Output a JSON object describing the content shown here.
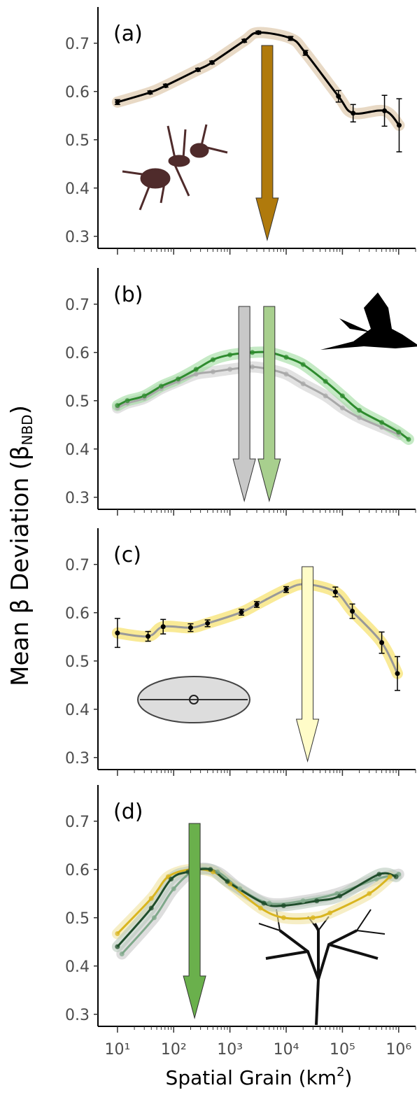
{
  "ylabel": {
    "text": "Mean β Deviation (β",
    "sub": "NBD",
    "end": ")"
  },
  "xlabel": {
    "text": "Spatial Grain (km",
    "sup": "2",
    "end": ")"
  },
  "chart_data": [
    {
      "type": "line",
      "panel_label": "(a)",
      "xscale": "log",
      "xlim": [
        4.5,
        2000000
      ],
      "ylim": [
        0.275,
        0.775
      ],
      "xticks": [
        10,
        100,
        1000,
        10000,
        100000,
        1000000
      ],
      "yticks": [
        0.3,
        0.4,
        0.5,
        0.6,
        0.7
      ],
      "series": [
        {
          "color": "#000000",
          "line_color": "#000000",
          "band_color": "#d9c09e",
          "x": [
            10,
            38,
            72,
            270,
            480,
            1800,
            3200,
            12000,
            22000,
            85000,
            155000,
            560000,
            1020000
          ],
          "values": [
            0.578,
            0.598,
            0.612,
            0.645,
            0.66,
            0.705,
            0.722,
            0.71,
            0.68,
            0.59,
            0.555,
            0.56,
            0.53
          ],
          "errors": [
            0.005,
            0.003,
            0.003,
            0.003,
            0.003,
            0.003,
            0.003,
            0.004,
            0.005,
            0.012,
            0.018,
            0.032,
            0.055
          ]
        }
      ],
      "arrows": [
        {
          "x": 4600,
          "color": "#b07a0c"
        }
      ]
    },
    {
      "type": "line",
      "panel_label": "(b)",
      "xscale": "log",
      "xlim": [
        4.5,
        2000000
      ],
      "ylim": [
        0.275,
        0.775
      ],
      "xticks": [
        10,
        100,
        1000,
        10000,
        100000,
        1000000
      ],
      "yticks": [
        0.3,
        0.4,
        0.5,
        0.6,
        0.7
      ],
      "series": [
        {
          "color": "#a9a9a9",
          "line_color": "#a9a9a9",
          "band_color": "#cfcfcf",
          "x": [
            10,
            15,
            30,
            60,
            120,
            250,
            500,
            1000,
            2500,
            5000,
            10000,
            20000,
            50000,
            100000,
            200000,
            500000,
            1000000
          ],
          "values": [
            0.485,
            0.495,
            0.505,
            0.525,
            0.54,
            0.555,
            0.56,
            0.565,
            0.57,
            0.565,
            0.555,
            0.535,
            0.51,
            0.485,
            0.465,
            0.445,
            0.43
          ]
        },
        {
          "color": "#2e8b2e",
          "line_color": "#2e8b2e",
          "band_color": "#9fdc9f",
          "x": [
            10,
            15,
            30,
            60,
            120,
            250,
            500,
            1000,
            2500,
            5000,
            10000,
            20000,
            50000,
            100000,
            200000,
            500000,
            1000000,
            1500000
          ],
          "values": [
            0.49,
            0.5,
            0.51,
            0.53,
            0.545,
            0.565,
            0.585,
            0.595,
            0.6,
            0.6,
            0.59,
            0.575,
            0.54,
            0.51,
            0.48,
            0.455,
            0.435,
            0.42
          ]
        }
      ],
      "arrows": [
        {
          "x": 1800,
          "color": "#c8c8c8"
        },
        {
          "x": 5000,
          "color": "#a8cf8e"
        }
      ]
    },
    {
      "type": "line",
      "panel_label": "(c)",
      "xscale": "log",
      "xlim": [
        4.5,
        2000000
      ],
      "ylim": [
        0.275,
        0.775
      ],
      "xticks": [
        10,
        100,
        1000,
        10000,
        100000,
        1000000
      ],
      "yticks": [
        0.3,
        0.4,
        0.5,
        0.6,
        0.7
      ],
      "series": [
        {
          "color": "#000000",
          "line_color": "#999999",
          "band_color": "#f5dc50",
          "x": [
            10,
            35,
            65,
            200,
            400,
            1600,
            3000,
            10000,
            22000,
            75000,
            150000,
            500000,
            950000
          ],
          "values": [
            0.558,
            0.551,
            0.571,
            0.569,
            0.578,
            0.601,
            0.617,
            0.648,
            0.659,
            0.643,
            0.603,
            0.538,
            0.474
          ],
          "errors": [
            0.03,
            0.01,
            0.015,
            0.008,
            0.007,
            0.006,
            0.006,
            0.006,
            0.006,
            0.01,
            0.015,
            0.022,
            0.035
          ]
        }
      ],
      "arrows": [
        {
          "x": 24000,
          "color": "#fffcc8"
        }
      ]
    },
    {
      "type": "line",
      "panel_label": "(d)",
      "xscale": "log",
      "xlim": [
        4.5,
        2000000
      ],
      "ylim": [
        0.275,
        0.775
      ],
      "xticks": [
        {
          "value": 10,
          "label": "10¹"
        },
        {
          "value": 100,
          "label": "10²"
        },
        {
          "value": 1000,
          "label": "10³"
        },
        {
          "value": 10000,
          "label": "10⁴"
        },
        {
          "value": 100000,
          "label": "10⁵"
        },
        {
          "value": 1000000,
          "label": "10⁶"
        }
      ],
      "yticks": [
        0.3,
        0.4,
        0.5,
        0.6,
        0.7
      ],
      "series": [
        {
          "color": "#7fa88a",
          "line_color": "#7fa88a",
          "band_color": "#c8c8c8",
          "x": [
            12,
            45,
            100,
            250,
            600,
            1500,
            5000,
            20000,
            80000,
            400000,
            1000000
          ],
          "values": [
            0.425,
            0.5,
            0.56,
            0.6,
            0.595,
            0.56,
            0.53,
            0.535,
            0.55,
            0.58,
            0.59
          ]
        },
        {
          "color": "#d9b520",
          "line_color": "#d9b520",
          "band_color": "#f0e2a0",
          "x": [
            10,
            40,
            80,
            200,
            500,
            1000,
            3500,
            9000,
            30000,
            60000,
            300000,
            700000
          ],
          "values": [
            0.467,
            0.54,
            0.585,
            0.6,
            0.595,
            0.57,
            0.52,
            0.5,
            0.5,
            0.51,
            0.55,
            0.585
          ]
        },
        {
          "color": "#1f4d2b",
          "line_color": "#1f4d2b",
          "band_color": "#b9c9bc",
          "x": [
            10,
            40,
            90,
            180,
            450,
            900,
            4000,
            9000,
            35000,
            90000,
            450000,
            900000
          ],
          "values": [
            0.44,
            0.52,
            0.58,
            0.595,
            0.6,
            0.575,
            0.53,
            0.525,
            0.535,
            0.545,
            0.59,
            0.585
          ]
        }
      ],
      "arrows": [
        {
          "x": 235,
          "color": "#6ab04c"
        }
      ]
    }
  ]
}
